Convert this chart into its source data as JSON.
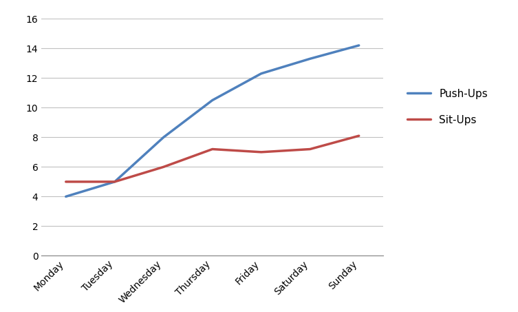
{
  "days": [
    "Monday",
    "Tuesday",
    "Wednesday",
    "Thursday",
    "Friday",
    "Saturday",
    "Sunday"
  ],
  "pushups": [
    4,
    5,
    8,
    10.5,
    12.3,
    13.3,
    14.2
  ],
  "situps": [
    5,
    5,
    6,
    7.2,
    7,
    7.2,
    8.1
  ],
  "pushups_color": "#4F81BD",
  "situps_color": "#BE4B48",
  "pushups_label": "Push-Ups",
  "situps_label": "Sit-Ups",
  "ylim": [
    0,
    16
  ],
  "yticks": [
    0,
    2,
    4,
    6,
    8,
    10,
    12,
    14,
    16
  ],
  "line_width": 2.5,
  "background_color": "#FFFFFF",
  "plot_bg_color": "#FFFFFF",
  "grid_color": "#C0C0C0",
  "legend_fontsize": 11,
  "tick_fontsize": 10,
  "border_color": "#808080"
}
